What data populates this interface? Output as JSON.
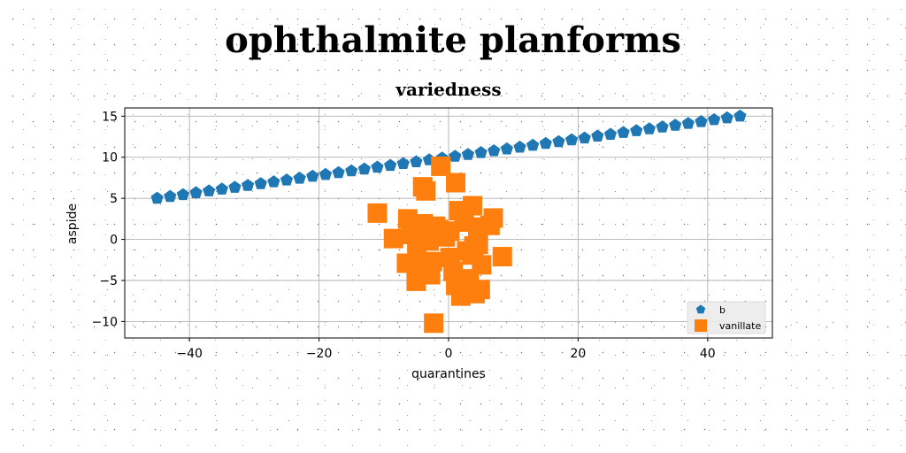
{
  "figure": {
    "suptitle": "ophthalmite planforms"
  },
  "chart_data": {
    "type": "scatter",
    "title": "variedness",
    "xlabel": "quarantines",
    "ylabel": "aspide",
    "xlim": [
      -50,
      50
    ],
    "ylim": [
      -12,
      16
    ],
    "xticks": [
      -40,
      -20,
      0,
      20,
      40
    ],
    "yticks": [
      -10,
      -5,
      0,
      5,
      10,
      15
    ],
    "xtick_labels": [
      "−40",
      "−20",
      "0",
      "20",
      "40"
    ],
    "ytick_labels": [
      "−10",
      "−5",
      "0",
      "5",
      "10",
      "15"
    ],
    "grid": true,
    "legend_position": "lower-right",
    "series": [
      {
        "name": "b",
        "marker": "pentagon",
        "color": "#1f77b4",
        "x": [
          -45.0,
          -43.0,
          -41.0,
          -39.0,
          -37.0,
          -35.0,
          -33.0,
          -31.0,
          -29.0,
          -27.0,
          -25.0,
          -23.0,
          -21.0,
          -19.0,
          -17.0,
          -15.0,
          -13.0,
          -11.0,
          -9.0,
          -7.0,
          -5.0,
          -3.0,
          -1.0,
          1.0,
          3.0,
          5.0,
          7.0,
          9.0,
          11.0,
          13.0,
          15.0,
          17.0,
          19.0,
          21.0,
          23.0,
          25.0,
          27.0,
          29.0,
          31.0,
          33.0,
          35.0,
          37.0,
          39.0,
          41.0,
          43.0,
          45.0
        ],
        "y": [
          5.0,
          5.22,
          5.44,
          5.67,
          5.89,
          6.11,
          6.33,
          6.56,
          6.78,
          7.0,
          7.22,
          7.44,
          7.67,
          7.89,
          8.11,
          8.33,
          8.56,
          8.78,
          9.0,
          9.22,
          9.44,
          9.67,
          9.89,
          10.11,
          10.33,
          10.56,
          10.78,
          11.0,
          11.22,
          11.44,
          11.67,
          11.89,
          12.11,
          12.33,
          12.56,
          12.78,
          13.0,
          13.22,
          13.44,
          13.67,
          13.89,
          14.11,
          14.33,
          14.56,
          14.78,
          15.0
        ]
      },
      {
        "name": "vanillate",
        "marker": "square",
        "color": "#ff7f0e",
        "x": [
          -1.2,
          1.1,
          -4.0,
          -3.5,
          -11.0,
          -6.3,
          -3.9,
          -2.0,
          1.6,
          3.7,
          6.9,
          -8.5,
          -5.7,
          -3.0,
          -0.5,
          2.4,
          4.5,
          6.4,
          0.2,
          3.9,
          8.3,
          -6.5,
          -4.5,
          -2.5,
          3.6,
          5.1,
          -5.0,
          0.3,
          4.6,
          -2.8,
          1.1,
          3.2,
          4.9,
          -2.3,
          0.7,
          2.8,
          4.1,
          -1.5,
          -4.9,
          1.9
        ],
        "y": [
          8.9,
          6.9,
          6.4,
          5.9,
          3.2,
          2.5,
          1.9,
          1.6,
          3.5,
          4.1,
          2.6,
          0.1,
          0.6,
          -0.2,
          0.3,
          2.1,
          1.5,
          1.7,
          1.0,
          -0.8,
          -2.1,
          -2.9,
          -3.3,
          -2.7,
          -1.9,
          -3.1,
          -5.1,
          -2.2,
          -0.6,
          -4.3,
          -5.6,
          -4.8,
          -6.1,
          -10.2,
          -3.9,
          -1.4,
          -6.6,
          1.2,
          -1.1,
          -6.9
        ]
      }
    ]
  }
}
